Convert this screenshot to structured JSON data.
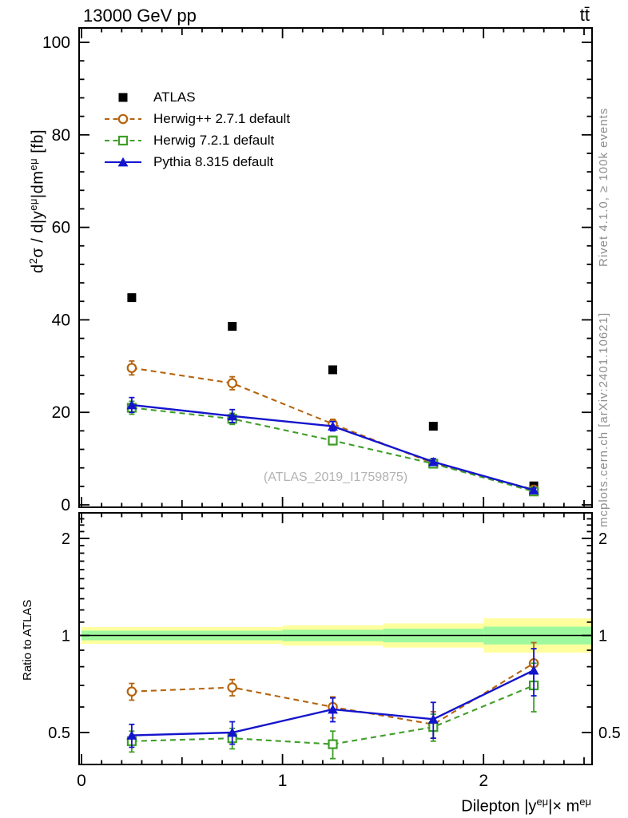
{
  "header": {
    "title": "13000 GeV pp",
    "process": "tt̄"
  },
  "side_captions": {
    "top": "Rivet 4.1.0, ≥ 100k events",
    "bottom": "mcplots.cern.ch [arXiv:2401.10621]"
  },
  "watermark": "(ATLAS_2019_I1759875)",
  "axes": {
    "main_ylabel": {
      "pre": "d",
      "sup0": "2",
      "a": "σ / d|y",
      "sup1": "eμ",
      "b": "|dm",
      "sup2": "eμ",
      "c": " [fb]"
    },
    "xlabel": {
      "a": "Dilepton |y",
      "sup1": "eμ",
      "b": "|× m",
      "sup2": "eμ"
    },
    "ratio_ylabel": "Ratio to ATLAS"
  },
  "chart_data": {
    "type": "line",
    "title": "13000 GeV pp",
    "xlabel": "Dilepton |y^emu| x m^emu",
    "x": [
      0.25,
      0.75,
      1.25,
      1.75,
      2.25
    ],
    "bin_edges": [
      0,
      0.5,
      1,
      1.5,
      2,
      2.5
    ],
    "xlim": [
      0,
      2.54
    ],
    "xticks": [
      0,
      1,
      2
    ],
    "grid": false,
    "legend_position": "upper-left",
    "main": {
      "ylabel": "d2sigma / d|y^emu|dm^emu [fb]",
      "ylim": [
        0,
        103
      ],
      "yticks": [
        0,
        20,
        40,
        60,
        80,
        100
      ],
      "series": [
        {
          "name": "ATLAS",
          "color": "#000000",
          "marker": "square",
          "line": "none",
          "values": [
            44.8,
            38.6,
            29.2,
            17.0,
            4.1
          ],
          "yerr": [
            0,
            0,
            0,
            0,
            0
          ]
        },
        {
          "name": "Herwig++ 2.7.1 default",
          "color": "#b5640f",
          "marker": "circle-open",
          "line": "dashed",
          "values": [
            29.6,
            26.3,
            17.5,
            9.0,
            3.3
          ],
          "yerr": [
            1.5,
            1.4,
            1.0,
            0.7,
            0.4
          ]
        },
        {
          "name": "Herwig 7.2.1 default",
          "color": "#3f9e28",
          "marker": "square-open",
          "line": "dashed",
          "values": [
            21.0,
            18.6,
            13.9,
            8.9,
            2.9
          ],
          "yerr": [
            1.4,
            1.2,
            0.9,
            0.6,
            0.35
          ]
        },
        {
          "name": "Pythia 8.315 default",
          "color": "#1414cc",
          "marker": "triangle",
          "line": "solid",
          "values": [
            21.6,
            19.2,
            17.0,
            9.3,
            3.2
          ],
          "yerr": [
            1.6,
            1.4,
            1.0,
            0.7,
            0.4
          ]
        }
      ]
    },
    "ratio": {
      "ylabel": "Ratio to ATLAS",
      "yscale": "log",
      "ylim": [
        0.4,
        2.42
      ],
      "yticks": [
        0.5,
        1,
        2
      ],
      "reference": 1,
      "band_colors": {
        "outer": "#ffff9e",
        "inner": "#9ef89e"
      },
      "bands": [
        {
          "x0": 0.0,
          "x1": 1.0,
          "outer": [
            0.942,
            1.062
          ],
          "inner": [
            0.966,
            1.035
          ]
        },
        {
          "x0": 1.0,
          "x1": 1.5,
          "outer": [
            0.93,
            1.075
          ],
          "inner": [
            0.96,
            1.042
          ]
        },
        {
          "x0": 1.5,
          "x1": 2.0,
          "outer": [
            0.917,
            1.09
          ],
          "inner": [
            0.952,
            1.05
          ]
        },
        {
          "x0": 2.0,
          "x1": 2.54,
          "outer": [
            0.885,
            1.13
          ],
          "inner": [
            0.938,
            1.065
          ]
        }
      ],
      "series": [
        {
          "name": "Herwig++ 2.7.1 default",
          "color": "#b5640f",
          "marker": "circle-open",
          "line": "dashed",
          "values": [
            0.67,
            0.69,
            0.6,
            0.53,
            0.82
          ],
          "yerr": [
            0.04,
            0.04,
            0.045,
            0.05,
            0.13
          ]
        },
        {
          "name": "Herwig 7.2.1 default",
          "color": "#3f9e28",
          "marker": "square-open",
          "line": "dashed",
          "values": [
            0.47,
            0.48,
            0.46,
            0.52,
            0.7
          ],
          "yerr": [
            0.035,
            0.035,
            0.045,
            0.05,
            0.12
          ]
        },
        {
          "name": "Pythia 8.315 default",
          "color": "#1414cc",
          "marker": "triangle",
          "line": "solid",
          "values": [
            0.49,
            0.5,
            0.59,
            0.55,
            0.78
          ],
          "yerr": [
            0.04,
            0.04,
            0.05,
            0.07,
            0.13
          ]
        }
      ]
    }
  }
}
